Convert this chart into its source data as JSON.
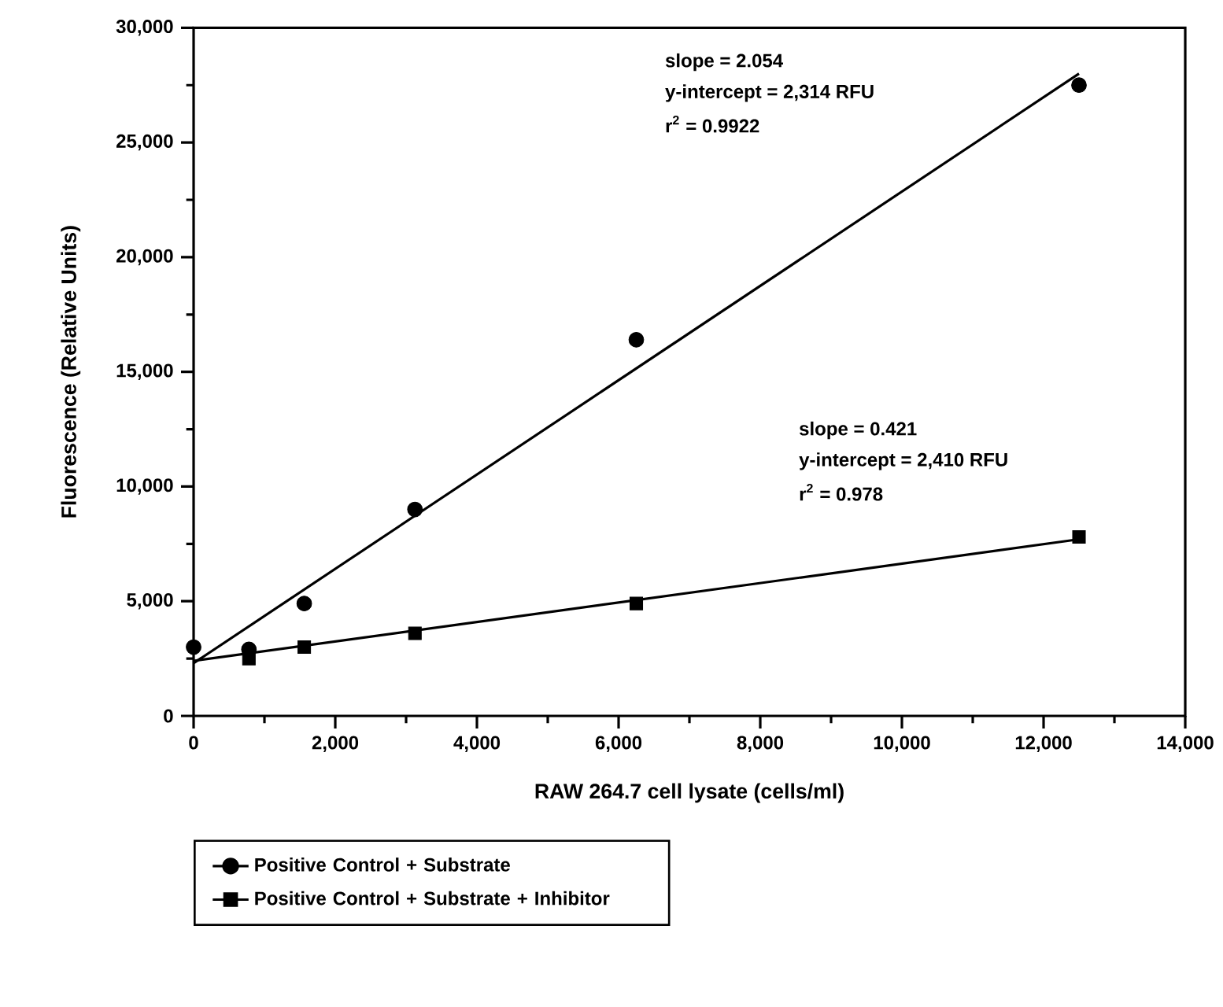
{
  "chart_data": {
    "type": "scatter",
    "xlabel": "RAW 264.7 cell lysate (cells/ml)",
    "ylabel": "Fluorescence (Relative Units)",
    "xlim": [
      0,
      14000
    ],
    "ylim": [
      0,
      30000
    ],
    "xticks": [
      0,
      {
        "value": 2000,
        "label": "2,000"
      },
      {
        "value": 4000,
        "label": "4,000"
      },
      {
        "value": 6000,
        "label": "6,000"
      },
      {
        "value": 8000,
        "label": "8,000"
      },
      {
        "value": 10000,
        "label": "10,000"
      },
      {
        "value": 12000,
        "label": "12,000"
      },
      {
        "value": 14000,
        "label": "14,000"
      }
    ],
    "yticks": [
      0,
      {
        "value": 5000,
        "label": "5,000"
      },
      {
        "value": 10000,
        "label": "10,000"
      },
      {
        "value": 15000,
        "label": "15,000"
      },
      {
        "value": 20000,
        "label": "20,000"
      },
      {
        "value": 25000,
        "label": "25,000"
      },
      {
        "value": 30000,
        "label": "30,000"
      }
    ],
    "grid": false,
    "legend": "bottom",
    "series": [
      {
        "name": "Positive Control + Substrate",
        "marker": "circle",
        "color": "#000000",
        "x": [
          0,
          781,
          1562,
          3125,
          6250,
          12500
        ],
        "values": [
          3000,
          2900,
          4900,
          9000,
          16400,
          27500
        ]
      },
      {
        "name": "Positive Control + Substrate + Inhibitor",
        "marker": "square",
        "color": "#000000",
        "x": [
          781,
          1562,
          3125,
          6250,
          12500
        ],
        "values": [
          2500,
          3000,
          3600,
          4900,
          7800
        ]
      },
      {
        "type": "line",
        "marker": "none",
        "color": "#000000",
        "x": [
          0,
          12500
        ],
        "values": [
          2300,
          28000
        ]
      },
      {
        "type": "line",
        "marker": "none",
        "color": "#000000",
        "x": [
          0,
          12500
        ],
        "values": [
          2400,
          7700
        ]
      }
    ],
    "annotations": [
      "slope = 2.054",
      "y-intercept = 2,314 RFU",
      "r$^{2}$ = 0.9922",
      "slope = 0.421",
      "y-intercept = 2,410 RFU",
      "r$^{2}$ = 0.978"
    ]
  }
}
